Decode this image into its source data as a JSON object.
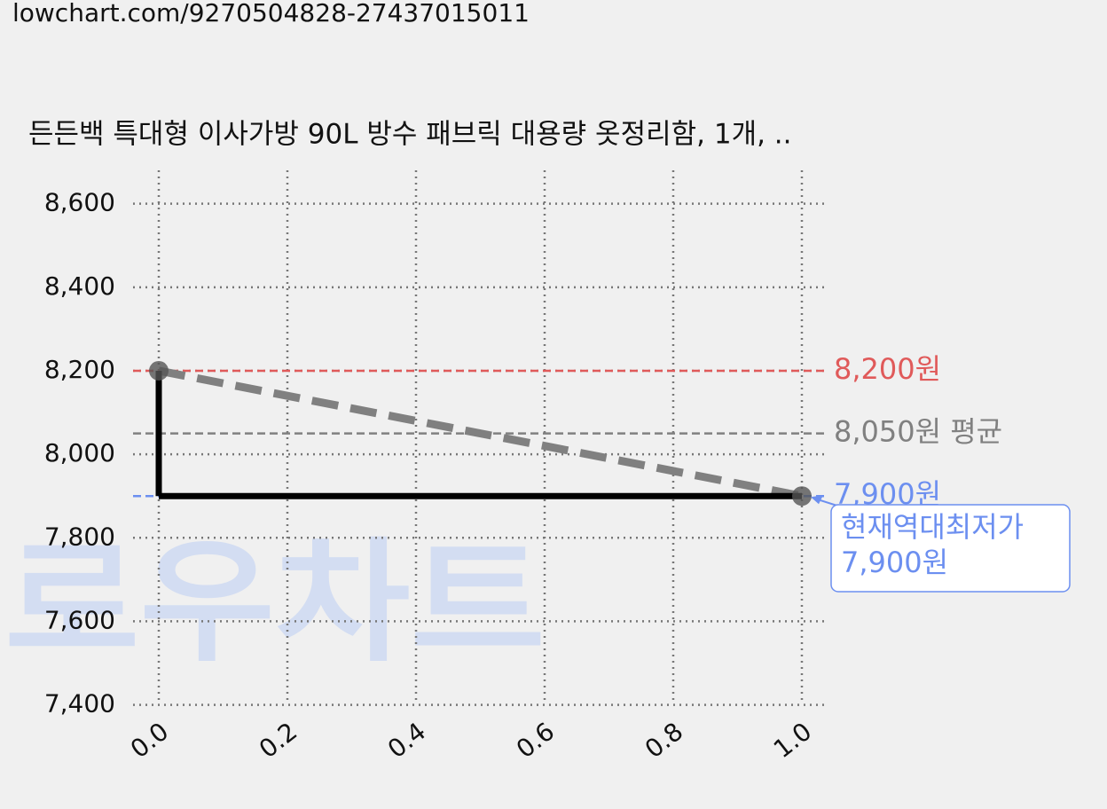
{
  "url": "lowchart.com/9270504828-27437015011",
  "watermark": "로우차트",
  "chart_data": {
    "type": "line",
    "title": "든든백 특대형 이사가방 90L 방수 패브릭 대용량 옷정리함, 1개, ..",
    "x": [
      0,
      1
    ],
    "series": [
      {
        "color": "#000000",
        "values": [
          8200,
          7900
        ]
      }
    ],
    "trend_color": "#808080",
    "xlim": [
      -0.04,
      1.04
    ],
    "ylim": [
      7380,
      8680
    ],
    "xticks": [
      {
        "value": 0,
        "label": "0.0"
      },
      0.2,
      0.4,
      0.6,
      0.8,
      {
        "value": 1,
        "label": "1.0"
      }
    ],
    "yticks": [
      {
        "value": 7400,
        "label": "7,400"
      },
      {
        "value": 7600,
        "label": "7,600"
      },
      {
        "value": 7800,
        "label": "7,800"
      },
      {
        "value": 8000,
        "label": "8,000"
      },
      {
        "value": 8200,
        "label": "8,200"
      },
      {
        "value": 8400,
        "label": "8,400"
      },
      {
        "value": 8600,
        "label": "8,600"
      }
    ],
    "grid": true,
    "reference_lines": [
      {
        "value": 8200,
        "label": "8,200원",
        "color": "#e05a5a"
      },
      {
        "value": 8050,
        "label": "8,050원 평균",
        "color": "#808080"
      },
      {
        "value": 7900,
        "label": "7,900원",
        "color": "#6c8ff0"
      }
    ],
    "annotation": {
      "x": 1,
      "y": 7900,
      "lines": [
        "현재역대최저가",
        "7,900원"
      ],
      "color": "#6c8ff0"
    }
  }
}
